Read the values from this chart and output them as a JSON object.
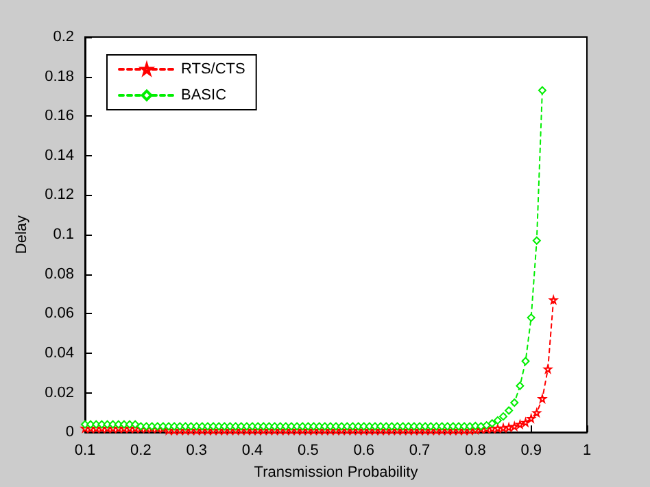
{
  "chart_data": {
    "type": "line",
    "xlabel": "Transmission Probability",
    "ylabel": "Delay",
    "xlim": [
      0.1,
      1
    ],
    "ylim": [
      0,
      0.2
    ],
    "xticks": [
      0.1,
      0.2,
      0.3,
      0.4,
      0.5,
      0.6,
      0.7,
      0.8,
      0.9,
      1
    ],
    "yticks": [
      0,
      0.02,
      0.04,
      0.06,
      0.08,
      0.1,
      0.12,
      0.14,
      0.16,
      0.18,
      0.2
    ],
    "grid": false,
    "legend": "top left",
    "line_style": "dashed",
    "series": [
      {
        "name": "RTS/CTS",
        "color": "#ff0000",
        "marker": "star",
        "x": [
          0.1,
          0.11,
          0.12,
          0.13,
          0.14,
          0.15,
          0.16,
          0.17,
          0.18,
          0.19,
          0.2,
          0.21,
          0.22,
          0.23,
          0.24,
          0.25,
          0.26,
          0.27,
          0.28,
          0.29,
          0.3,
          0.31,
          0.32,
          0.33,
          0.34,
          0.35,
          0.36,
          0.37,
          0.38,
          0.39,
          0.4,
          0.41,
          0.42,
          0.43,
          0.44,
          0.45,
          0.46,
          0.47,
          0.48,
          0.49,
          0.5,
          0.51,
          0.52,
          0.53,
          0.54,
          0.55,
          0.56,
          0.57,
          0.58,
          0.59,
          0.6,
          0.61,
          0.62,
          0.63,
          0.64,
          0.65,
          0.66,
          0.67,
          0.68,
          0.69,
          0.7,
          0.71,
          0.72,
          0.73,
          0.74,
          0.75,
          0.76,
          0.77,
          0.78,
          0.79,
          0.8,
          0.81,
          0.82,
          0.83,
          0.84,
          0.85,
          0.86,
          0.87,
          0.88,
          0.89,
          0.9,
          0.91,
          0.92,
          0.93,
          0.94
        ],
        "values": [
          0.002,
          0.002,
          0.002,
          0.002,
          0.002,
          0.002,
          0.002,
          0.002,
          0.002,
          0.002,
          0.002,
          0.002,
          0.002,
          0.002,
          0.002,
          0.001,
          0.001,
          0.001,
          0.001,
          0.001,
          0.001,
          0.001,
          0.001,
          0.001,
          0.001,
          0.001,
          0.001,
          0.001,
          0.001,
          0.001,
          0.001,
          0.001,
          0.001,
          0.001,
          0.001,
          0.001,
          0.001,
          0.001,
          0.001,
          0.001,
          0.001,
          0.001,
          0.001,
          0.001,
          0.001,
          0.001,
          0.001,
          0.001,
          0.001,
          0.001,
          0.001,
          0.001,
          0.001,
          0.001,
          0.001,
          0.001,
          0.001,
          0.001,
          0.001,
          0.001,
          0.001,
          0.001,
          0.001,
          0.001,
          0.001,
          0.001,
          0.001,
          0.001,
          0.001,
          0.001,
          0.0013,
          0.0017,
          0.0018,
          0.0019,
          0.002,
          0.0022,
          0.0025,
          0.003,
          0.004,
          0.005,
          0.007,
          0.0099,
          0.017,
          0.032,
          0.067
        ]
      },
      {
        "name": "BASIC",
        "color": "#00ee00",
        "marker": "diamond",
        "x": [
          0.1,
          0.11,
          0.12,
          0.13,
          0.14,
          0.15,
          0.16,
          0.17,
          0.18,
          0.19,
          0.2,
          0.21,
          0.22,
          0.23,
          0.24,
          0.25,
          0.26,
          0.27,
          0.28,
          0.29,
          0.3,
          0.31,
          0.32,
          0.33,
          0.34,
          0.35,
          0.36,
          0.37,
          0.38,
          0.39,
          0.4,
          0.41,
          0.42,
          0.43,
          0.44,
          0.45,
          0.46,
          0.47,
          0.48,
          0.49,
          0.5,
          0.51,
          0.52,
          0.53,
          0.54,
          0.55,
          0.56,
          0.57,
          0.58,
          0.59,
          0.6,
          0.61,
          0.62,
          0.63,
          0.64,
          0.65,
          0.66,
          0.67,
          0.68,
          0.69,
          0.7,
          0.71,
          0.72,
          0.73,
          0.74,
          0.75,
          0.76,
          0.77,
          0.78,
          0.79,
          0.8,
          0.81,
          0.82,
          0.83,
          0.84,
          0.85,
          0.86,
          0.87,
          0.88,
          0.89,
          0.9,
          0.91,
          0.92
        ],
        "values": [
          0.004,
          0.004,
          0.004,
          0.004,
          0.004,
          0.004,
          0.004,
          0.004,
          0.004,
          0.004,
          0.003,
          0.003,
          0.003,
          0.003,
          0.003,
          0.003,
          0.003,
          0.003,
          0.003,
          0.003,
          0.003,
          0.003,
          0.003,
          0.003,
          0.003,
          0.003,
          0.003,
          0.003,
          0.003,
          0.003,
          0.003,
          0.003,
          0.003,
          0.003,
          0.003,
          0.003,
          0.003,
          0.003,
          0.003,
          0.003,
          0.003,
          0.003,
          0.003,
          0.003,
          0.003,
          0.003,
          0.003,
          0.003,
          0.003,
          0.003,
          0.003,
          0.003,
          0.003,
          0.003,
          0.003,
          0.003,
          0.003,
          0.003,
          0.003,
          0.003,
          0.003,
          0.003,
          0.003,
          0.003,
          0.003,
          0.003,
          0.003,
          0.003,
          0.003,
          0.003,
          0.0032,
          0.003,
          0.0035,
          0.0045,
          0.006,
          0.008,
          0.011,
          0.015,
          0.0235,
          0.036,
          0.058,
          0.097,
          0.173
        ]
      }
    ]
  }
}
